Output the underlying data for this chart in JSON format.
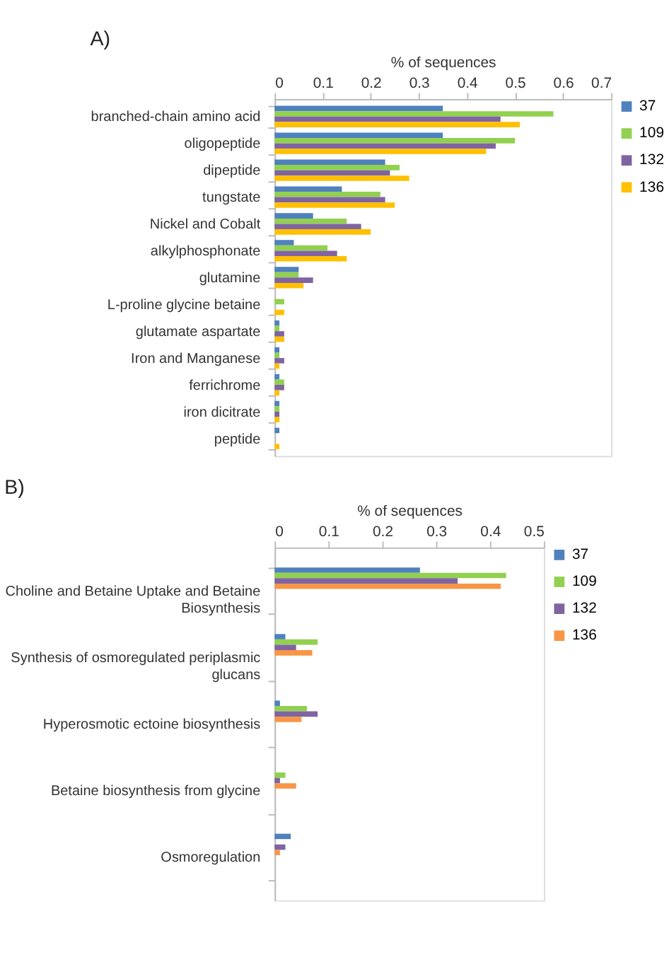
{
  "chart_data": [
    {
      "type": "bar",
      "title": "A)",
      "xlabel": "% of sequences",
      "orientation": "horizontal",
      "legend": "right",
      "grid": false,
      "categories": [
        "branched-chain amino acid",
        "oligopeptide",
        "dipeptide",
        "tungstate",
        "Nickel and Cobalt",
        "alkylphosphonate",
        "glutamine",
        "L-proline glycine betaine",
        "glutamate aspartate",
        "Iron and Manganese",
        "ferrichrome",
        "iron dicitrate",
        "peptide"
      ],
      "xlim": [
        0,
        0.7
      ],
      "xticks": [
        0,
        0.1,
        0.2,
        0.3,
        0.4,
        0.5,
        0.6,
        0.7
      ],
      "series": [
        {
          "name": "37",
          "color": "#4f81bd",
          "values": [
            0.35,
            0.35,
            0.23,
            0.14,
            0.08,
            0.04,
            0.05,
            0,
            0.01,
            0.01,
            0.01,
            0.01,
            0.01
          ]
        },
        {
          "name": "109",
          "color": "#92d050",
          "values": [
            0.58,
            0.5,
            0.26,
            0.22,
            0.15,
            0.11,
            0.05,
            0.02,
            0.01,
            0.01,
            0.02,
            0.01,
            0
          ]
        },
        {
          "name": "132",
          "color": "#8064a2",
          "values": [
            0.47,
            0.46,
            0.24,
            0.23,
            0.18,
            0.13,
            0.08,
            0,
            0.02,
            0.02,
            0.02,
            0.01,
            0
          ]
        },
        {
          "name": "136",
          "color": "#ffc000",
          "values": [
            0.51,
            0.44,
            0.28,
            0.25,
            0.2,
            0.15,
            0.06,
            0.02,
            0.02,
            0.01,
            0.01,
            0.01,
            0.01
          ]
        }
      ]
    },
    {
      "type": "bar",
      "title": "B)",
      "xlabel": "% of sequences",
      "orientation": "horizontal",
      "legend": "right",
      "grid": false,
      "categories": [
        "Choline and Betaine Uptake and Betaine Biosynthesis",
        "Synthesis of osmoregulated periplasmic glucans",
        "Hyperosmotic ectoine biosynthesis",
        "Betaine biosynthesis from glycine",
        "Osmoregulation"
      ],
      "xlim": [
        0,
        0.5
      ],
      "xticks": [
        0,
        0.1,
        0.2,
        0.3,
        0.4,
        0.5
      ],
      "series": [
        {
          "name": "37",
          "color": "#4f81bd",
          "values": [
            0.27,
            0.02,
            0.01,
            0,
            0.03
          ]
        },
        {
          "name": "109",
          "color": "#92d050",
          "values": [
            0.43,
            0.08,
            0.06,
            0.02,
            0
          ]
        },
        {
          "name": "132",
          "color": "#8064a2",
          "values": [
            0.34,
            0.04,
            0.08,
            0.01,
            0.02
          ]
        },
        {
          "name": "136",
          "color": "#f79646",
          "values": [
            0.42,
            0.07,
            0.05,
            0.04,
            0.01
          ]
        }
      ]
    }
  ]
}
